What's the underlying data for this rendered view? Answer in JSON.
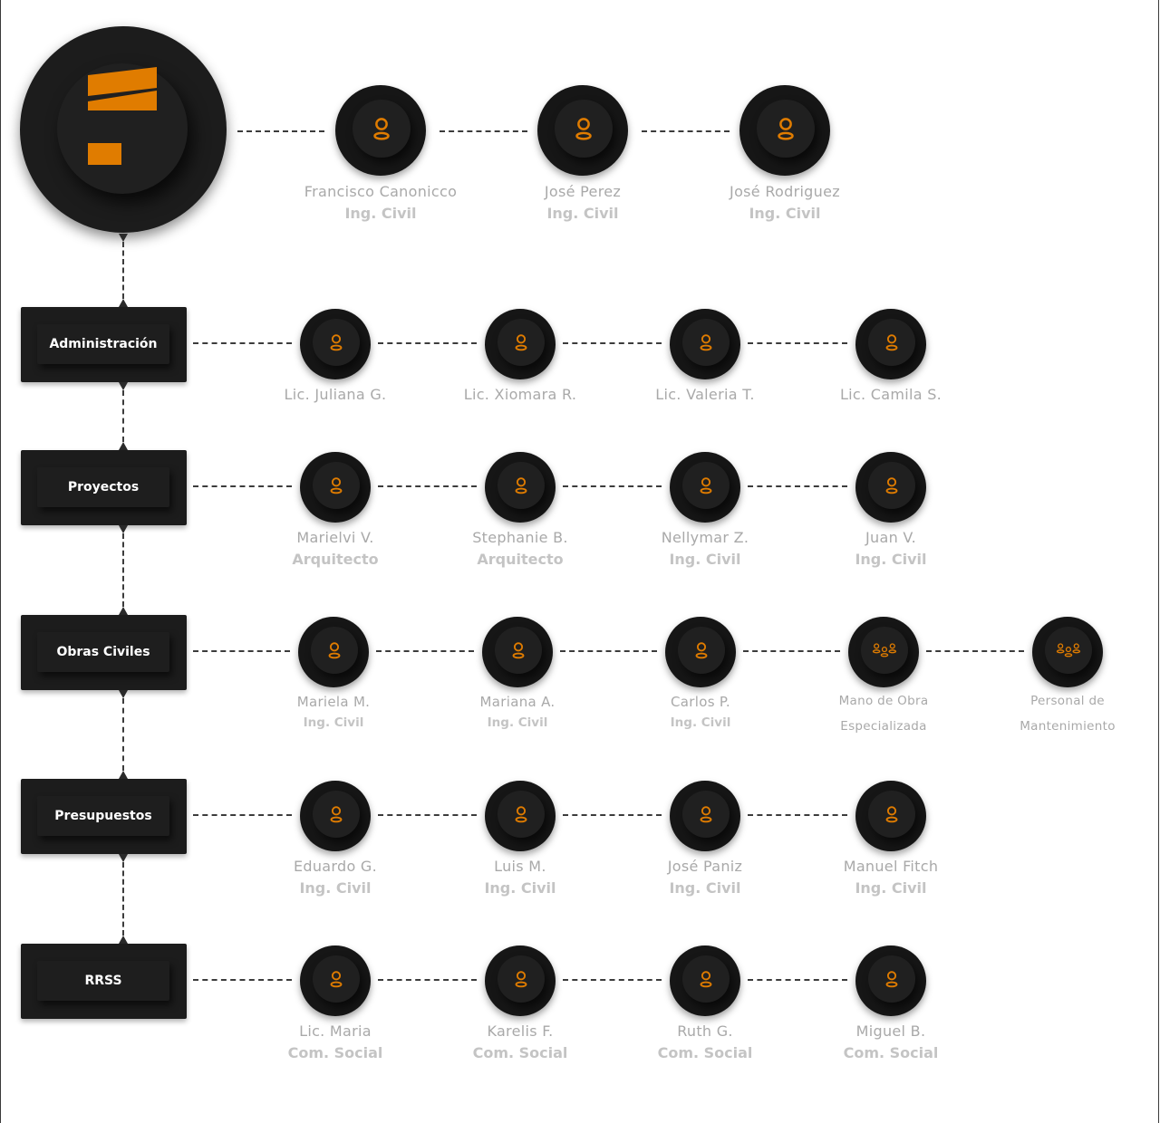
{
  "colors": {
    "accent": "#e07c00",
    "node": "#1c1c1c",
    "label": "#a9a9a9"
  },
  "logo": {
    "icon": "company-logo-icon"
  },
  "top_row": [
    {
      "name": "Francisco Canonicco",
      "role": "Ing. Civil",
      "icon": "person-icon"
    },
    {
      "name": "José Perez",
      "role": "Ing. Civil",
      "icon": "person-icon"
    },
    {
      "name": "José Rodriguez",
      "role": "Ing. Civil",
      "icon": "person-icon"
    }
  ],
  "departments": [
    {
      "label": "Administración",
      "members": [
        {
          "name": "Lic. Juliana G.",
          "role": "",
          "icon": "person-icon"
        },
        {
          "name": "Lic. Xiomara R.",
          "role": "",
          "icon": "person-icon"
        },
        {
          "name": "Lic. Valeria T.",
          "role": "",
          "icon": "person-icon"
        },
        {
          "name": "Lic. Camila S.",
          "role": "",
          "icon": "person-icon"
        }
      ]
    },
    {
      "label": "Proyectos",
      "members": [
        {
          "name": "Marielvi V.",
          "role": "Arquitecto",
          "icon": "person-icon"
        },
        {
          "name": "Stephanie B.",
          "role": "Arquitecto",
          "icon": "person-icon"
        },
        {
          "name": "Nellymar Z.",
          "role": "Ing. Civil",
          "icon": "person-icon"
        },
        {
          "name": "Juan V.",
          "role": "Ing. Civil",
          "icon": "person-icon"
        }
      ]
    },
    {
      "label": "Obras Civiles",
      "members": [
        {
          "name": "Mariela M.",
          "role": "Ing. Civil",
          "icon": "person-icon"
        },
        {
          "name": "Mariana A.",
          "role": "Ing. Civil",
          "icon": "person-icon"
        },
        {
          "name": "Carlos P.",
          "role": "Ing. Civil",
          "icon": "person-icon"
        },
        {
          "name": "Mano de Obra",
          "role": "Especializada",
          "icon": "group-icon"
        },
        {
          "name": "Personal de",
          "role": "Mantenimiento",
          "icon": "group-icon"
        }
      ]
    },
    {
      "label": "Presupuestos",
      "members": [
        {
          "name": "Eduardo G.",
          "role": "Ing. Civil",
          "icon": "person-icon"
        },
        {
          "name": "Luis M.",
          "role": "Ing. Civil",
          "icon": "person-icon"
        },
        {
          "name": "José Paniz",
          "role": "Ing. Civil",
          "icon": "person-icon"
        },
        {
          "name": "Manuel Fitch",
          "role": "Ing. Civil",
          "icon": "person-icon"
        }
      ]
    },
    {
      "label": "RRSS",
      "members": [
        {
          "name": "Lic. Maria",
          "role": "Com. Social",
          "icon": "person-icon"
        },
        {
          "name": "Karelis F.",
          "role": "Com. Social",
          "icon": "person-icon"
        },
        {
          "name": "Ruth G.",
          "role": "Com. Social",
          "icon": "person-icon"
        },
        {
          "name": "Miguel B.",
          "role": "Com. Social",
          "icon": "person-icon"
        }
      ]
    }
  ]
}
